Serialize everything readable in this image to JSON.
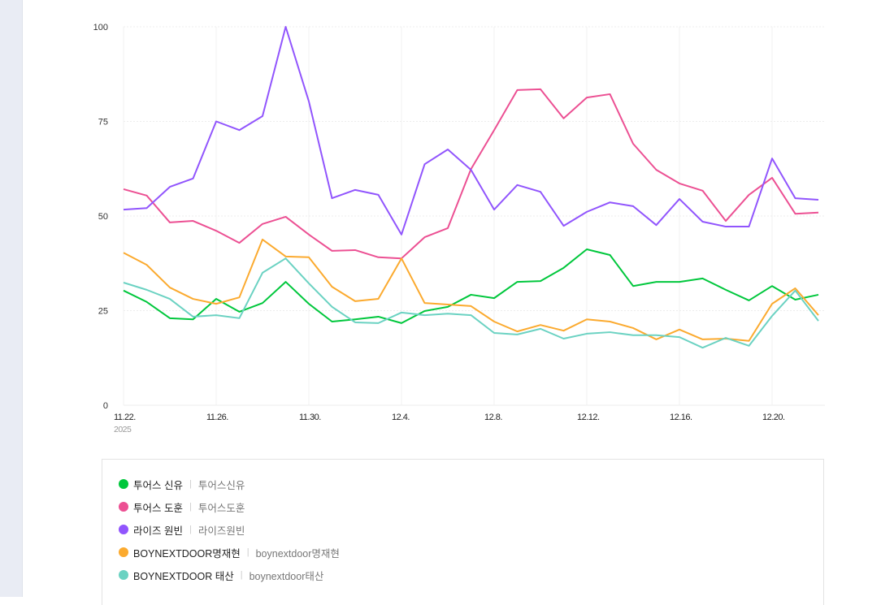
{
  "chart_data": {
    "type": "line",
    "x": [
      "11.22.",
      "11.23.",
      "11.24.",
      "11.25.",
      "11.26.",
      "11.27.",
      "11.28.",
      "11.29.",
      "11.30.",
      "12.1.",
      "12.2.",
      "12.3.",
      "12.4.",
      "12.5.",
      "12.6.",
      "12.7.",
      "12.8.",
      "12.9.",
      "12.10.",
      "12.11.",
      "12.12.",
      "12.13.",
      "12.14.",
      "12.15.",
      "12.16.",
      "12.17.",
      "12.18.",
      "12.19.",
      "12.20.",
      "12.21.",
      "12.22."
    ],
    "x_tick_labels": [
      "11.22.",
      "11.26.",
      "11.30.",
      "12.4.",
      "12.8.",
      "12.12.",
      "12.16.",
      "12.20."
    ],
    "x_year_label": "2025",
    "y_ticks": [
      0,
      25,
      50,
      75,
      100
    ],
    "ylim": [
      0,
      100
    ],
    "grid": true,
    "legend_position": "bottom",
    "series": [
      {
        "name": "투어스 신유",
        "keywords": "투어스신유",
        "color": "#00c73c",
        "values": [
          30.3,
          27.3,
          23.0,
          22.7,
          28.1,
          24.7,
          27.0,
          32.6,
          26.8,
          22.1,
          22.7,
          23.4,
          21.7,
          24.9,
          26.0,
          29.2,
          28.3,
          32.6,
          32.8,
          36.3,
          41.2,
          39.7,
          31.5,
          32.6,
          32.6,
          33.5,
          30.5,
          27.7,
          31.5,
          27.9,
          29.2
        ]
      },
      {
        "name": "투어스 도훈",
        "keywords": "투어스도훈",
        "color": "#ec5093",
        "values": [
          57.1,
          55.4,
          48.3,
          48.7,
          46.1,
          42.9,
          47.9,
          49.8,
          45.1,
          40.8,
          41.0,
          39.1,
          38.8,
          44.4,
          46.8,
          62.4,
          72.7,
          83.3,
          83.5,
          75.8,
          81.3,
          82.2,
          69.1,
          62.2,
          58.6,
          56.7,
          48.7,
          55.6,
          60.1,
          50.6,
          50.9
        ]
      },
      {
        "name": "라이즈 원빈",
        "keywords": "라이즈원빈",
        "color": "#9155fd",
        "values": [
          51.7,
          52.1,
          57.7,
          59.9,
          75.0,
          72.7,
          76.4,
          100,
          80.3,
          54.7,
          56.9,
          55.6,
          45.1,
          63.7,
          67.6,
          62.2,
          51.7,
          58.2,
          56.4,
          47.4,
          51.1,
          53.6,
          52.6,
          47.6,
          54.5,
          48.5,
          47.2,
          47.2,
          65.2,
          54.7,
          54.3
        ]
      },
      {
        "name": "BOYNEXTDOOR명재현",
        "keywords": "boynextdoor명재현",
        "color": "#fbaa2f",
        "values": [
          40.3,
          37.1,
          31.1,
          28.1,
          26.8,
          28.5,
          43.8,
          39.3,
          39.1,
          31.3,
          27.5,
          28.1,
          38.8,
          27.0,
          26.6,
          26.2,
          22.1,
          19.5,
          21.2,
          19.7,
          22.7,
          22.1,
          20.4,
          17.4,
          20.0,
          17.4,
          17.6,
          17.0,
          26.8,
          30.9,
          23.8
        ]
      },
      {
        "name": "BOYNEXTDOOR 태산",
        "keywords": "boynextdoor태산",
        "color": "#6bd2c2",
        "values": [
          32.4,
          30.5,
          28.1,
          23.4,
          23.8,
          23.0,
          35.0,
          38.8,
          32.2,
          26.0,
          21.9,
          21.7,
          24.5,
          23.8,
          24.2,
          23.8,
          19.1,
          18.7,
          20.2,
          17.6,
          18.9,
          19.3,
          18.5,
          18.5,
          18.0,
          15.2,
          17.8,
          15.7,
          23.6,
          30.3,
          22.3
        ]
      }
    ]
  }
}
